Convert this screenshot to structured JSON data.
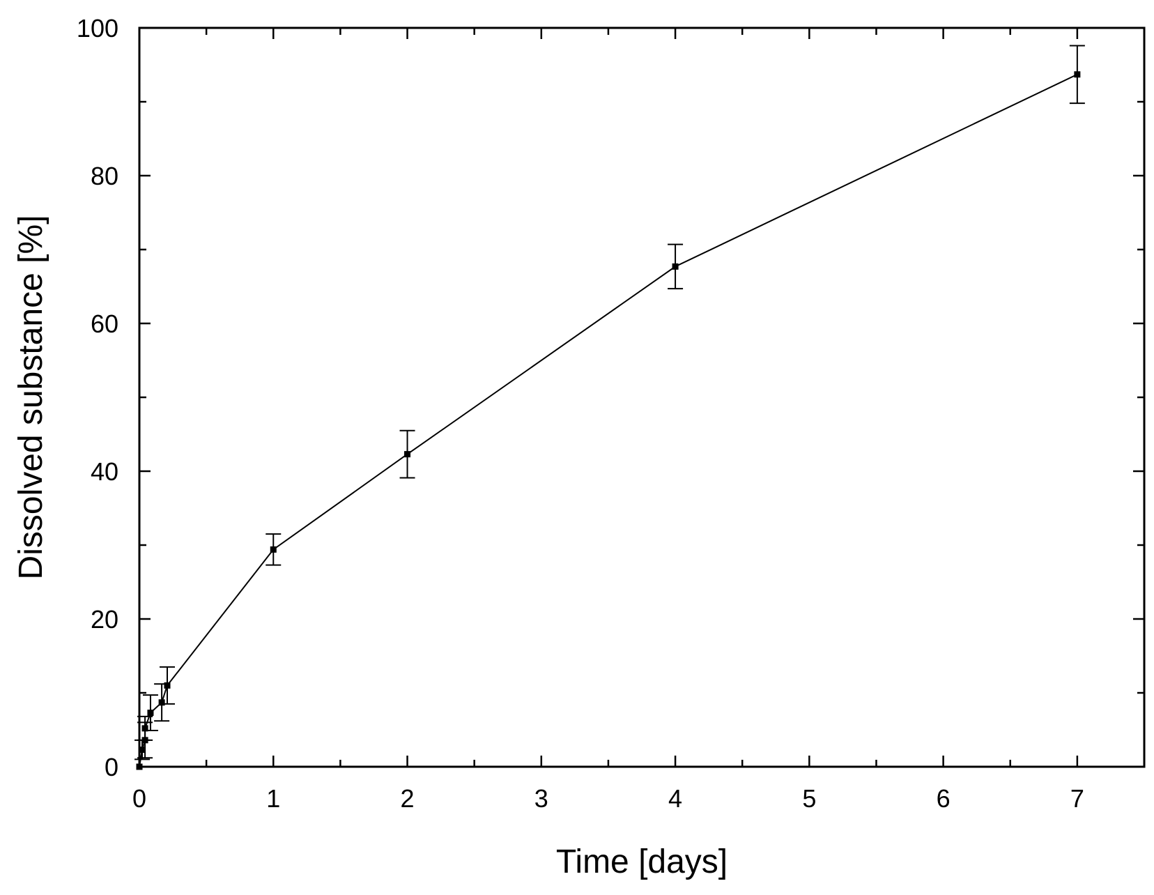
{
  "chart_data": {
    "type": "line",
    "title": "",
    "xlabel": "Time [days]",
    "ylabel": "Dissolved substance [%]",
    "xlim": [
      0,
      7.5
    ],
    "ylim": [
      0,
      100
    ],
    "x_ticks": [
      "0",
      "1",
      "2",
      "3",
      "4",
      "5",
      "6",
      "7"
    ],
    "y_ticks": [
      "0",
      "20",
      "40",
      "60",
      "80",
      "100"
    ],
    "grid": false,
    "legend": "none",
    "series": [
      {
        "color": "#000000",
        "marker": "square",
        "points": [
          {
            "x": 0.0,
            "y": 0.0,
            "err": 0
          },
          {
            "x": 0.021,
            "y": 2.3,
            "err": 1.3
          },
          {
            "x": 0.042,
            "y": 3.6,
            "err": 2.4
          },
          {
            "x": 0.042,
            "y": 5.2,
            "err": 1.6
          },
          {
            "x": 0.083,
            "y": 7.3,
            "err": 2.4
          },
          {
            "x": 0.167,
            "y": 8.7,
            "err": 2.5
          },
          {
            "x": 0.208,
            "y": 11.0,
            "err": 2.5
          },
          {
            "x": 1,
            "y": 29.4,
            "err": 2.1
          },
          {
            "x": 2,
            "y": 42.3,
            "err": 3.2
          },
          {
            "x": 4,
            "y": 67.7,
            "err": 3.0
          },
          {
            "x": 7,
            "y": 93.7,
            "err": 3.9
          }
        ]
      }
    ]
  }
}
